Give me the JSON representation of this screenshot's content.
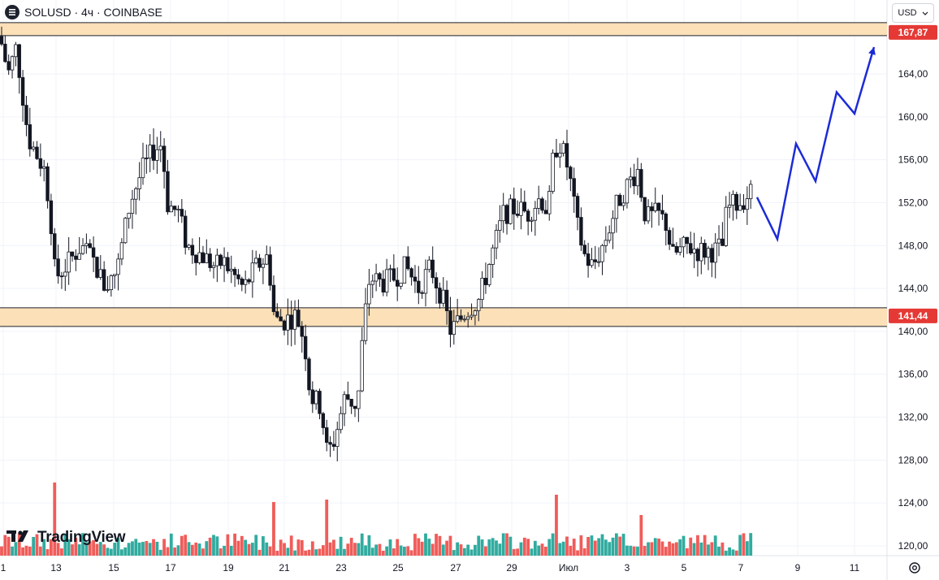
{
  "header": {
    "title": "SOLUSD · 4ч · COINBASE"
  },
  "currency": {
    "label": "USD"
  },
  "logo": {
    "text": "TradingView"
  },
  "colors": {
    "up": "#26a69a",
    "down": "#ef5350",
    "zone": "#fbe0b8",
    "zone_border": "#1e222d",
    "forecast": "#1c2bd6",
    "badge": "#e53935"
  },
  "chart_data": {
    "type": "candlestick",
    "y_axis": {
      "min": 120,
      "max": 167.87,
      "ticks": [
        "120,00",
        "124,00",
        "128,00",
        "132,00",
        "136,00",
        "140,00",
        "144,00",
        "148,00",
        "152,00",
        "156,00",
        "160,00",
        "164,00"
      ]
    },
    "x_axis": {
      "ticks": [
        "1",
        "13",
        "15",
        "17",
        "19",
        "21",
        "23",
        "25",
        "27",
        "29",
        "Июл",
        "3",
        "5",
        "7",
        "9",
        "11"
      ]
    },
    "zones": [
      {
        "label": "167,87",
        "value": 167.87
      },
      {
        "label": "141,44",
        "value": 141.44
      }
    ],
    "key_points": [
      {
        "x": 0,
        "p": 167.5
      },
      {
        "x": 10,
        "p": 164
      },
      {
        "x": 20,
        "p": 166.5
      },
      {
        "x": 35,
        "p": 158
      },
      {
        "x": 55,
        "p": 155
      },
      {
        "x": 62,
        "p": 151
      },
      {
        "x": 68,
        "p": 145
      },
      {
        "x": 80,
        "p": 146
      },
      {
        "x": 100,
        "p": 148
      },
      {
        "x": 115,
        "p": 146.5
      },
      {
        "x": 130,
        "p": 144
      },
      {
        "x": 145,
        "p": 146
      },
      {
        "x": 160,
        "p": 152
      },
      {
        "x": 175,
        "p": 155
      },
      {
        "x": 190,
        "p": 157
      },
      {
        "x": 200,
        "p": 157.5
      },
      {
        "x": 205,
        "p": 152
      },
      {
        "x": 220,
        "p": 151
      },
      {
        "x": 230,
        "p": 148
      },
      {
        "x": 250,
        "p": 147
      },
      {
        "x": 265,
        "p": 146
      },
      {
        "x": 275,
        "p": 146.5
      },
      {
        "x": 290,
        "p": 145
      },
      {
        "x": 300,
        "p": 144
      },
      {
        "x": 315,
        "p": 146
      },
      {
        "x": 330,
        "p": 147
      },
      {
        "x": 338,
        "p": 141
      },
      {
        "x": 350,
        "p": 141
      },
      {
        "x": 365,
        "p": 141.5
      },
      {
        "x": 375,
        "p": 139
      },
      {
        "x": 382,
        "p": 134
      },
      {
        "x": 395,
        "p": 133
      },
      {
        "x": 403,
        "p": 128.5
      },
      {
        "x": 412,
        "p": 130
      },
      {
        "x": 425,
        "p": 134
      },
      {
        "x": 440,
        "p": 133
      },
      {
        "x": 447,
        "p": 140
      },
      {
        "x": 455,
        "p": 145
      },
      {
        "x": 470,
        "p": 144.5
      },
      {
        "x": 485,
        "p": 145
      },
      {
        "x": 500,
        "p": 146
      },
      {
        "x": 515,
        "p": 144
      },
      {
        "x": 530,
        "p": 146
      },
      {
        "x": 545,
        "p": 143
      },
      {
        "x": 555,
        "p": 140
      },
      {
        "x": 565,
        "p": 141
      },
      {
        "x": 575,
        "p": 142
      },
      {
        "x": 590,
        "p": 143
      },
      {
        "x": 605,
        "p": 147
      },
      {
        "x": 620,
        "p": 151
      },
      {
        "x": 635,
        "p": 151.5
      },
      {
        "x": 650,
        "p": 151
      },
      {
        "x": 665,
        "p": 152.5
      },
      {
        "x": 675,
        "p": 151
      },
      {
        "x": 682,
        "p": 157
      },
      {
        "x": 690,
        "p": 157.5
      },
      {
        "x": 700,
        "p": 155
      },
      {
        "x": 710,
        "p": 150
      },
      {
        "x": 720,
        "p": 147
      },
      {
        "x": 730,
        "p": 146
      },
      {
        "x": 745,
        "p": 148.5
      },
      {
        "x": 760,
        "p": 152
      },
      {
        "x": 775,
        "p": 154
      },
      {
        "x": 785,
        "p": 155
      },
      {
        "x": 795,
        "p": 150.5
      },
      {
        "x": 810,
        "p": 151
      },
      {
        "x": 820,
        "p": 150
      },
      {
        "x": 828,
        "p": 147
      },
      {
        "x": 845,
        "p": 148
      },
      {
        "x": 860,
        "p": 147.5
      },
      {
        "x": 880,
        "p": 147.5
      },
      {
        "x": 890,
        "p": 148
      },
      {
        "x": 895,
        "p": 151.5
      },
      {
        "x": 910,
        "p": 152
      },
      {
        "x": 925,
        "p": 153
      }
    ],
    "volume_spikes": [
      {
        "x": 68,
        "v": 90
      },
      {
        "x": 338,
        "v": 66
      },
      {
        "x": 403,
        "v": 69
      },
      {
        "x": 685,
        "v": 75
      },
      {
        "x": 790,
        "v": 50
      }
    ],
    "forecast_path": [
      {
        "x": 932,
        "p": 152.5
      },
      {
        "x": 957,
        "p": 148.6
      },
      {
        "x": 980,
        "p": 157.5
      },
      {
        "x": 1004,
        "p": 154
      },
      {
        "x": 1030,
        "p": 162.3
      },
      {
        "x": 1052,
        "p": 160.3
      },
      {
        "x": 1076,
        "p": 166.5
      }
    ]
  }
}
